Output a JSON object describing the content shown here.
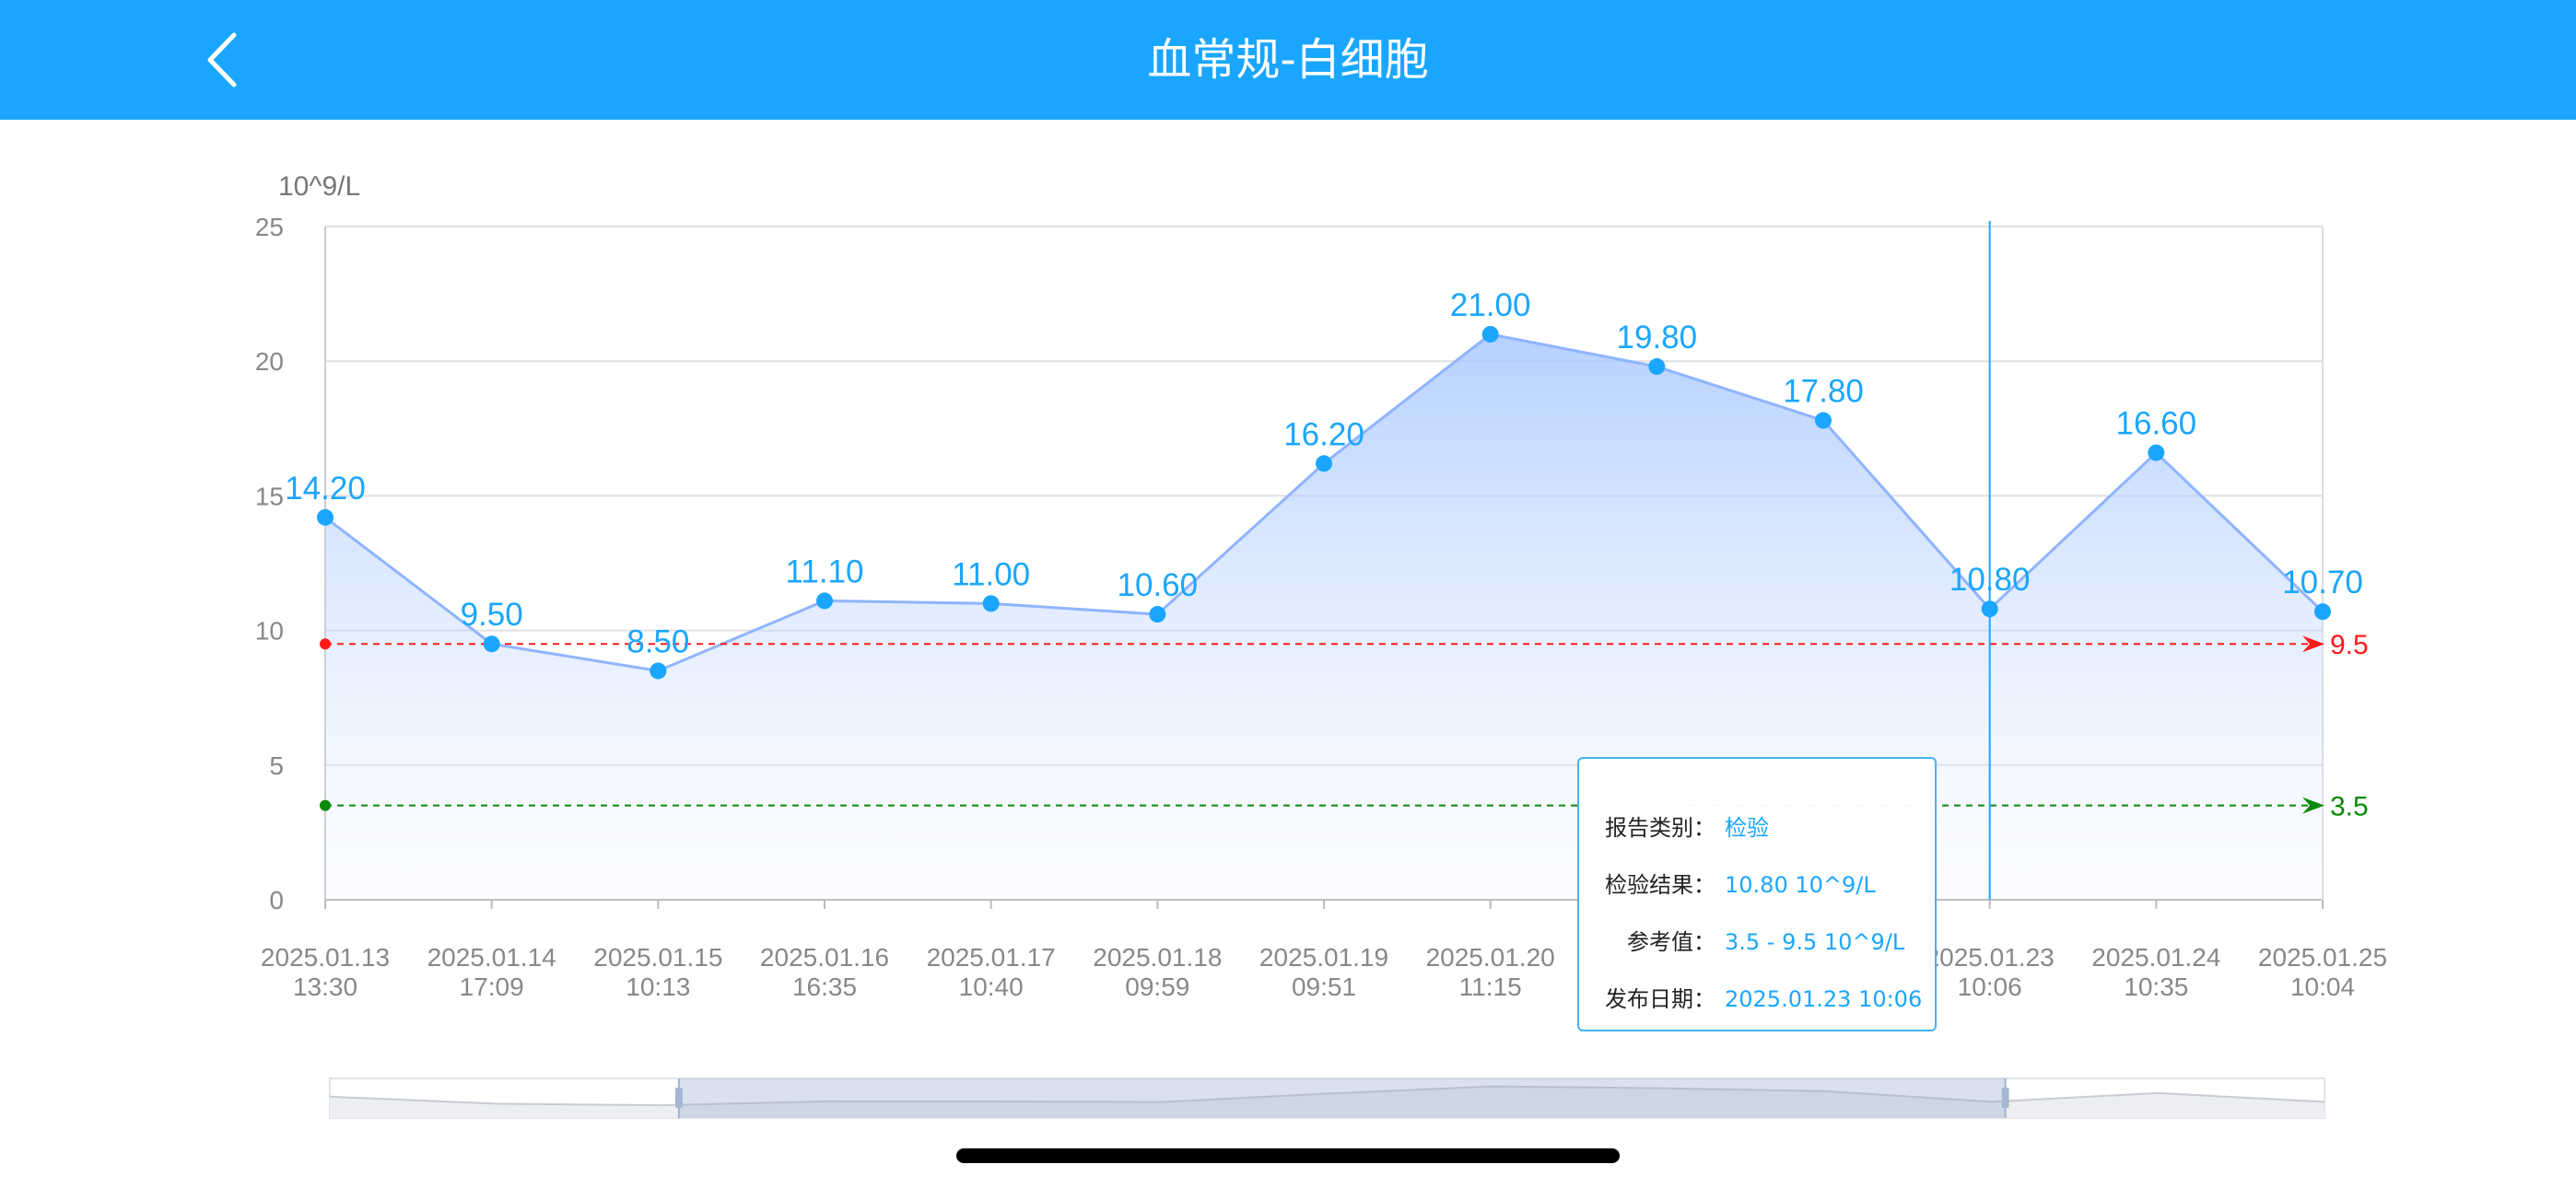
{
  "header": {
    "title": "血常规-白细胞",
    "back_icon": "chevron-left-icon",
    "background": "#1aa6ff"
  },
  "chart_data": {
    "type": "area",
    "ylabel": "10^9/L",
    "ylim": [
      0,
      25
    ],
    "yticks": [
      0,
      5,
      10,
      15,
      20,
      25
    ],
    "categories": [
      [
        "2025.01.13",
        "13:30"
      ],
      [
        "2025.01.14",
        "17:09"
      ],
      [
        "2025.01.15",
        "10:13"
      ],
      [
        "2025.01.16",
        "16:35"
      ],
      [
        "2025.01.17",
        "10:40"
      ],
      [
        "2025.01.18",
        "09:59"
      ],
      [
        "2025.01.19",
        "09:51"
      ],
      [
        "2025.01.20",
        "11:15"
      ],
      [
        "",
        ""
      ],
      [
        "",
        ""
      ],
      [
        "2025.01.23",
        "10:06"
      ],
      [
        "2025.01.24",
        "10:35"
      ],
      [
        "2025.01.25",
        "10:04"
      ]
    ],
    "values": [
      14.2,
      9.5,
      8.5,
      11.1,
      11.0,
      10.6,
      16.2,
      21.0,
      19.8,
      17.8,
      10.8,
      16.6,
      10.7
    ],
    "value_labels": [
      "14.20",
      "9.50",
      "8.50",
      "11.10",
      "11.00",
      "10.60",
      "16.20",
      "21.00",
      "19.80",
      "17.80",
      "10.80",
      "16.60",
      "10.70"
    ],
    "reference_lines": [
      {
        "value": 9.5,
        "label": "9.5",
        "color": "#ff1a1a"
      },
      {
        "value": 3.5,
        "label": "3.5",
        "color": "#0a8a0a"
      }
    ],
    "series_color": "#1aa6ff",
    "highlighted_index": 10,
    "grid": true,
    "datazoom": {
      "start_percent": 17.5,
      "end_percent": 84
    }
  },
  "tooltip": {
    "rows": [
      {
        "key": "报告类别：",
        "value": "检验"
      },
      {
        "key": "检验结果：",
        "value": "10.80 10^9/L"
      },
      {
        "key": "参考值：",
        "value": "3.5 - 9.5 10^9/L"
      },
      {
        "key": "发布日期：",
        "value": "2025.01.23 10:06"
      }
    ]
  }
}
